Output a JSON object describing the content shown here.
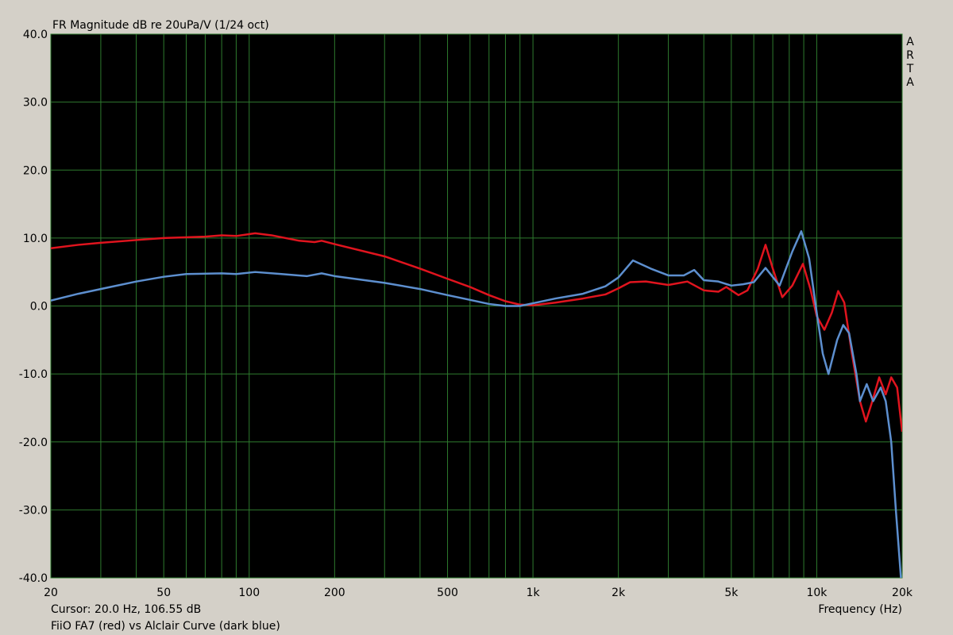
{
  "chart_data": {
    "type": "line",
    "title": "FR Magnitude dB re 20uPa/V (1/24 oct)",
    "watermark": "ARTA",
    "xlabel": "Frequency (Hz)",
    "cursor": "Cursor: 20.0 Hz, 106.55 dB",
    "caption": "FiiO FA7 (red) vs Alclair Curve (dark blue)",
    "xscale": "log",
    "xlim": [
      20,
      20000
    ],
    "ylim": [
      -40,
      40
    ],
    "xticks": [
      20,
      50,
      100,
      200,
      500,
      {
        "value": 1000,
        "label": "1k"
      },
      {
        "value": 2000,
        "label": "2k"
      },
      {
        "value": 5000,
        "label": "5k"
      },
      {
        "value": 10000,
        "label": "10k"
      },
      {
        "value": 20000,
        "label": "20k"
      }
    ],
    "xminor": [
      30,
      40,
      60,
      70,
      80,
      90,
      300,
      400,
      600,
      700,
      800,
      900,
      3000,
      4000,
      6000,
      7000,
      8000,
      9000
    ],
    "yticks": [
      {
        "value": -40,
        "label": "-40.0"
      },
      {
        "value": -30,
        "label": "-30.0"
      },
      {
        "value": -20,
        "label": "-20.0"
      },
      {
        "value": -10,
        "label": "-10.0"
      },
      {
        "value": 0,
        "label": "0.0"
      },
      {
        "value": 10,
        "label": "10.0"
      },
      {
        "value": 20,
        "label": "20.0"
      },
      {
        "value": 30,
        "label": "30.0"
      },
      {
        "value": 40,
        "label": "40.0"
      }
    ],
    "grid": true,
    "series": [
      {
        "color": "#e0141e",
        "x": [
          20,
          25,
          30,
          40,
          50,
          70,
          80,
          90,
          105,
          120,
          150,
          170,
          180,
          200,
          300,
          400,
          500,
          600,
          700,
          800,
          900,
          1000,
          1200,
          1500,
          1800,
          2000,
          2200,
          2500,
          3000,
          3500,
          4000,
          4500,
          4800,
          5300,
          5700,
          6200,
          6600,
          7000,
          7560,
          8200,
          8940,
          9500,
          10000,
          10640,
          11300,
          11900,
          12500,
          13300,
          14200,
          14900,
          15700,
          16600,
          17500,
          18300,
          19200,
          20000
        ],
        "values": [
          8.5,
          9.0,
          9.3,
          9.7,
          10.0,
          10.2,
          10.4,
          10.3,
          10.7,
          10.4,
          9.6,
          9.4,
          9.6,
          9.1,
          7.3,
          5.5,
          4.0,
          2.8,
          1.6,
          0.7,
          0.2,
          0.1,
          0.5,
          1.1,
          1.7,
          2.6,
          3.5,
          3.6,
          3.1,
          3.6,
          2.3,
          2.1,
          2.8,
          1.6,
          2.3,
          5.5,
          9.0,
          5.5,
          1.3,
          3.0,
          6.2,
          2.5,
          -1.5,
          -3.5,
          -1,
          2.2,
          0.5,
          -7,
          -14,
          -17,
          -14,
          -10.5,
          -13,
          -10.5,
          -12,
          -18.5
        ]
      },
      {
        "color": "#5d8fcf",
        "x": [
          20,
          25,
          30,
          40,
          50,
          60,
          80,
          90,
          105,
          130,
          160,
          180,
          200,
          300,
          400,
          500,
          600,
          700,
          800,
          900,
          1000,
          1200,
          1500,
          1800,
          2000,
          2250,
          2600,
          3000,
          3400,
          3700,
          4000,
          4500,
          5000,
          5500,
          6000,
          6600,
          7400,
          8200,
          8820,
          9400,
          10000,
          10500,
          11000,
          11800,
          12400,
          13000,
          13800,
          14200,
          15000,
          15800,
          16800,
          17500,
          18300,
          19000,
          19800
        ],
        "values": [
          0.8,
          1.8,
          2.5,
          3.6,
          4.3,
          4.7,
          4.8,
          4.7,
          5.0,
          4.7,
          4.4,
          4.8,
          4.4,
          3.4,
          2.5,
          1.6,
          0.9,
          0.3,
          0,
          0,
          0.4,
          1.1,
          1.8,
          2.9,
          4.2,
          6.7,
          5.5,
          4.5,
          4.5,
          5.3,
          3.8,
          3.6,
          3.0,
          3.2,
          3.5,
          5.6,
          3.0,
          8.0,
          11.0,
          7,
          -1,
          -7,
          -10,
          -5,
          -2.8,
          -4,
          -10,
          -14,
          -11.5,
          -14,
          -12,
          -14,
          -20,
          -30,
          -40
        ]
      }
    ]
  }
}
